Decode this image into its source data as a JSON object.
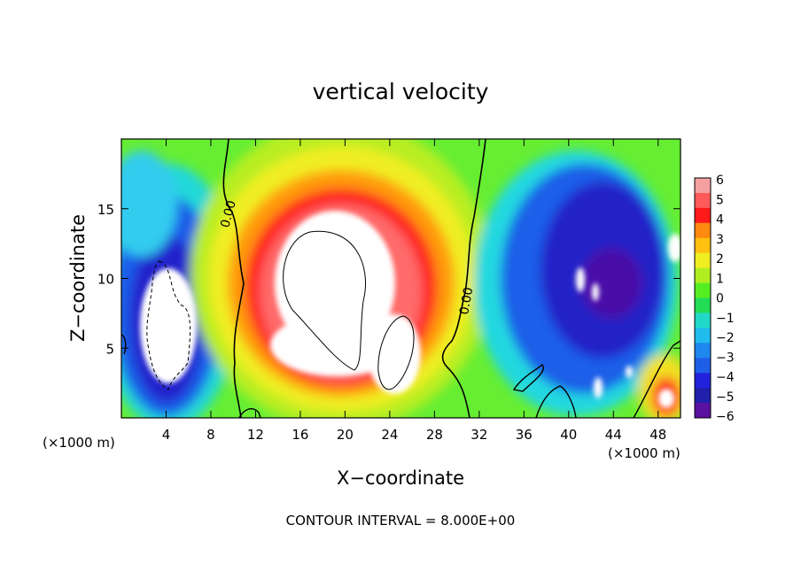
{
  "chart_data": {
    "type": "heatmap",
    "title": "vertical velocity",
    "xlabel": "X−coordinate",
    "ylabel": "Z−coordinate",
    "x_unit_left": "(×1000 m)",
    "x_unit_right": "(×1000 m)",
    "footer": "CONTOUR INTERVAL = 8.000E+00",
    "xlim": [
      0,
      50
    ],
    "ylim": [
      0,
      20
    ],
    "x_ticks": [
      4,
      8,
      12,
      16,
      20,
      24,
      28,
      32,
      36,
      40,
      44,
      48
    ],
    "y_ticks": [
      5,
      10,
      15
    ],
    "colorbar": {
      "min": -6,
      "max": 6,
      "ticks": [
        "6",
        "5",
        "4",
        "3",
        "2",
        "1",
        "0",
        "−1",
        "−2",
        "−3",
        "−4",
        "−5",
        "−6"
      ],
      "above_max_color": "#ffffff"
    },
    "contour_labels": [
      {
        "text": "0.00",
        "x": 10.0,
        "y": 13.5
      },
      {
        "text": "0.00",
        "x": 30.8,
        "y": 8.8
      }
    ],
    "features": [
      {
        "kind": "updraft-core",
        "x": 18.5,
        "z": 9.5,
        "peak": 8
      },
      {
        "kind": "updraft-core",
        "x": 4.0,
        "z": 6.5,
        "peak": 7
      },
      {
        "kind": "downdraft",
        "x": 44.0,
        "z": 9.0,
        "peak": -6
      },
      {
        "kind": "updraft-core",
        "x": 48.5,
        "z": 2.0,
        "peak": 7
      }
    ]
  }
}
